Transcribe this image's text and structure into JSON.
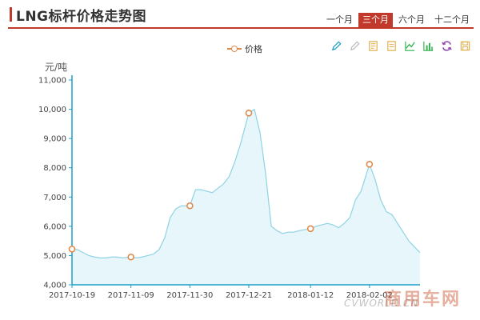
{
  "header": {
    "title": "LNG标杆价格走势图",
    "tabs": [
      {
        "label": "一个月",
        "active": false
      },
      {
        "label": "三个月",
        "active": true
      },
      {
        "label": "六个月",
        "active": false
      },
      {
        "label": "十二个月",
        "active": false
      }
    ]
  },
  "toolbar": {
    "icons": [
      "pencil-icon",
      "eraser-icon",
      "data-view-icon",
      "document-icon",
      "line-chart-icon",
      "bar-chart-icon",
      "refresh-icon",
      "save-icon"
    ]
  },
  "colors": {
    "accent": "#c0392b",
    "line": "#8fd3e3",
    "area": "#e6f6fb",
    "marker": "#e08a4a",
    "axis": "#1ba0c8"
  },
  "watermark": {
    "brand": "商用车网",
    "site": "CVWORLD.CN"
  },
  "chart_data": {
    "type": "area",
    "title": "",
    "legend": [
      "价格"
    ],
    "legend_position": "top-center",
    "ylabel": "元/吨",
    "xlabel": "",
    "ylim": [
      4000,
      11000
    ],
    "yticks": [
      4000,
      5000,
      6000,
      7000,
      8000,
      9000,
      10000,
      11000
    ],
    "ytick_labels": [
      "4,000",
      "5,000",
      "6,000",
      "7,000",
      "8,000",
      "9,000",
      "10,000",
      "11,000"
    ],
    "x_tick_labels": [
      "2017-10-19",
      "2017-11-09",
      "2017-11-30",
      "2017-12-21",
      "2018-01-12",
      "2018-02-02"
    ],
    "grid": false,
    "series": [
      {
        "name": "价格",
        "x": [
          "2017-10-19",
          "2017-10-21",
          "2017-10-23",
          "2017-10-25",
          "2017-10-27",
          "2017-10-29",
          "2017-10-31",
          "2017-11-02",
          "2017-11-04",
          "2017-11-06",
          "2017-11-09",
          "2017-11-11",
          "2017-11-13",
          "2017-11-15",
          "2017-11-17",
          "2017-11-19",
          "2017-11-21",
          "2017-11-23",
          "2017-11-25",
          "2017-11-27",
          "2017-11-30",
          "2017-12-02",
          "2017-12-04",
          "2017-12-06",
          "2017-12-08",
          "2017-12-10",
          "2017-12-12",
          "2017-12-14",
          "2017-12-16",
          "2017-12-18",
          "2017-12-21",
          "2017-12-23",
          "2017-12-25",
          "2017-12-27",
          "2017-12-29",
          "2017-12-31",
          "2018-01-02",
          "2018-01-04",
          "2018-01-06",
          "2018-01-08",
          "2018-01-12",
          "2018-01-14",
          "2018-01-16",
          "2018-01-18",
          "2018-01-20",
          "2018-01-22",
          "2018-01-24",
          "2018-01-26",
          "2018-01-28",
          "2018-01-30",
          "2018-02-02",
          "2018-02-04",
          "2018-02-06",
          "2018-02-08",
          "2018-02-10",
          "2018-02-12",
          "2018-02-14",
          "2018-02-16",
          "2018-02-18",
          "2018-02-20"
        ],
        "values": [
          5220,
          5200,
          5100,
          5000,
          4950,
          4920,
          4920,
          4950,
          4950,
          4920,
          4950,
          4920,
          4950,
          5000,
          5050,
          5200,
          5600,
          6300,
          6600,
          6700,
          6700,
          7250,
          7250,
          7200,
          7150,
          7300,
          7450,
          7700,
          8200,
          8800,
          9870,
          10000,
          9200,
          7800,
          6000,
          5850,
          5750,
          5800,
          5800,
          5850,
          5920,
          6000,
          6050,
          6100,
          6050,
          5950,
          6100,
          6300,
          6900,
          7200,
          8120,
          7600,
          6900,
          6500,
          6400,
          6100,
          5800,
          5500,
          5300,
          5100
        ]
      }
    ],
    "markers": [
      {
        "x": "2017-10-19",
        "y": 5220
      },
      {
        "x": "2017-11-09",
        "y": 4950
      },
      {
        "x": "2017-11-30",
        "y": 6700
      },
      {
        "x": "2017-12-21",
        "y": 9870
      },
      {
        "x": "2018-01-12",
        "y": 5920
      },
      {
        "x": "2018-02-02",
        "y": 8120
      }
    ]
  }
}
